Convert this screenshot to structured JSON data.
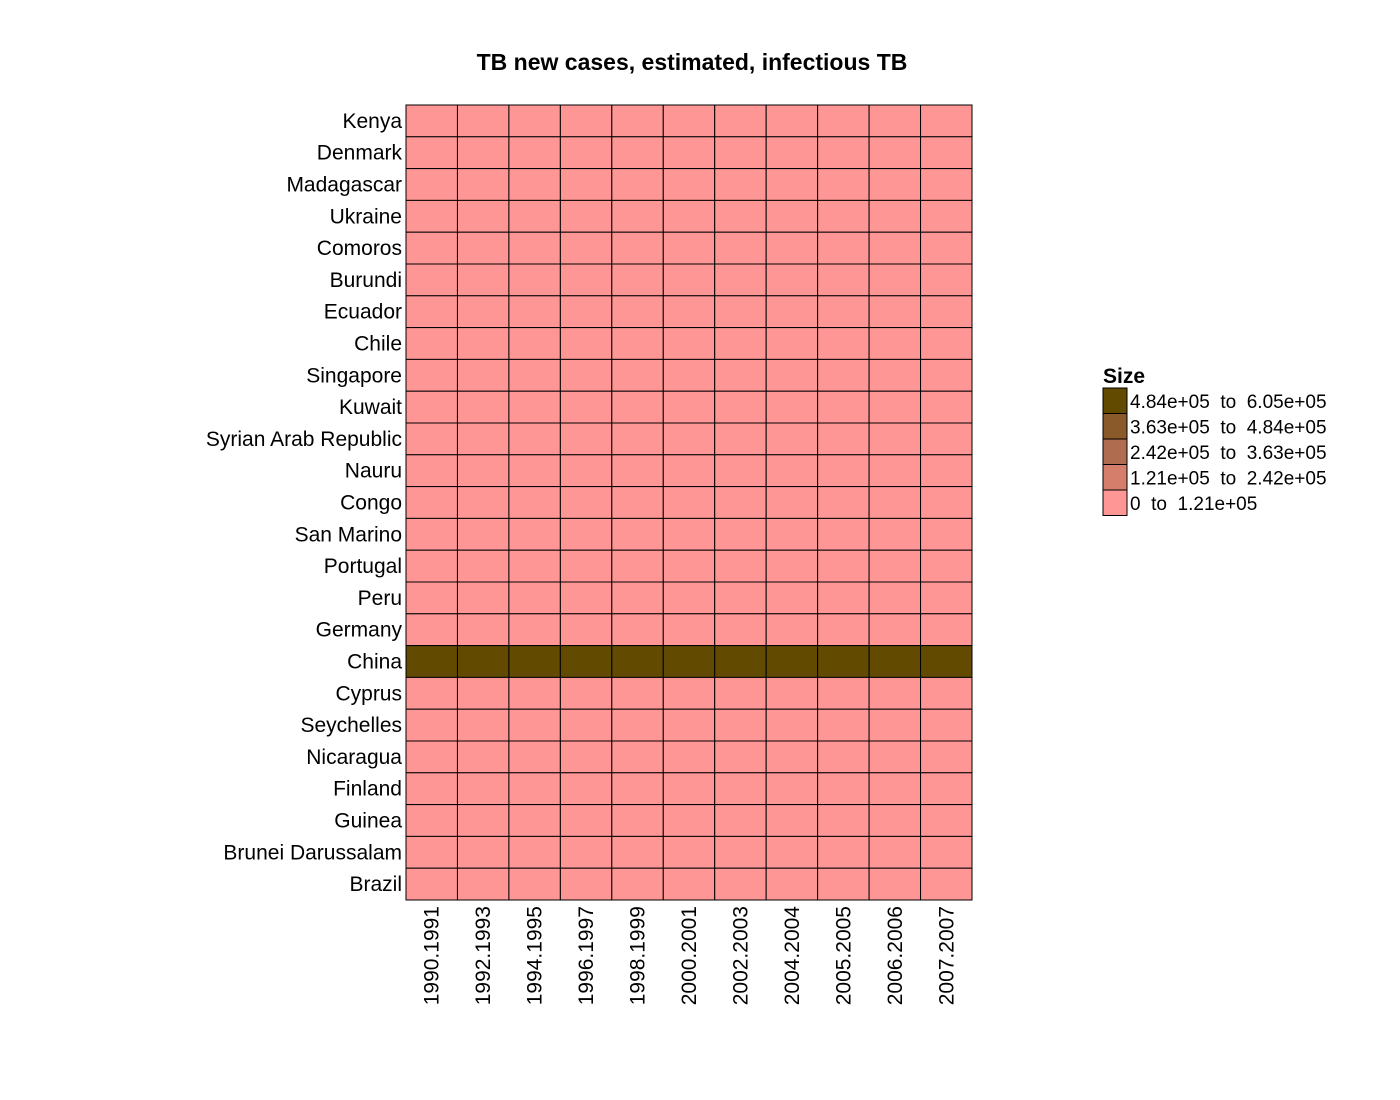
{
  "chart_data": {
    "type": "heatmap",
    "title": "TB new cases, estimated, infectious TB",
    "rows": [
      "Kenya",
      "Denmark",
      "Madagascar",
      "Ukraine",
      "Comoros",
      "Burundi",
      "Ecuador",
      "Chile",
      "Singapore",
      "Kuwait",
      "Syrian Arab Republic",
      "Nauru",
      "Congo",
      "San Marino",
      "Portugal",
      "Peru",
      "Germany",
      "China",
      "Cyprus",
      "Seychelles",
      "Nicaragua",
      "Finland",
      "Guinea",
      "Brunei Darussalam",
      "Brazil"
    ],
    "columns": [
      "1990.1991",
      "1992.1993",
      "1994.1995",
      "1996.1997",
      "1998.1999",
      "2000.2001",
      "2002.2003",
      "2004.2004",
      "2005.2005",
      "2006.2006",
      "2007.2007"
    ],
    "values": [
      [
        0,
        0,
        0,
        0,
        0,
        0,
        0,
        0,
        0,
        0,
        0
      ],
      [
        0,
        0,
        0,
        0,
        0,
        0,
        0,
        0,
        0,
        0,
        0
      ],
      [
        0,
        0,
        0,
        0,
        0,
        0,
        0,
        0,
        0,
        0,
        0
      ],
      [
        0,
        0,
        0,
        0,
        0,
        0,
        0,
        0,
        0,
        0,
        0
      ],
      [
        0,
        0,
        0,
        0,
        0,
        0,
        0,
        0,
        0,
        0,
        0
      ],
      [
        0,
        0,
        0,
        0,
        0,
        0,
        0,
        0,
        0,
        0,
        0
      ],
      [
        0,
        0,
        0,
        0,
        0,
        0,
        0,
        0,
        0,
        0,
        0
      ],
      [
        0,
        0,
        0,
        0,
        0,
        0,
        0,
        0,
        0,
        0,
        0
      ],
      [
        0,
        0,
        0,
        0,
        0,
        0,
        0,
        0,
        0,
        0,
        0
      ],
      [
        0,
        0,
        0,
        0,
        0,
        0,
        0,
        0,
        0,
        0,
        0
      ],
      [
        0,
        0,
        0,
        0,
        0,
        0,
        0,
        0,
        0,
        0,
        0
      ],
      [
        0,
        0,
        0,
        0,
        0,
        0,
        0,
        0,
        0,
        0,
        0
      ],
      [
        0,
        0,
        0,
        0,
        0,
        0,
        0,
        0,
        0,
        0,
        0
      ],
      [
        0,
        0,
        0,
        0,
        0,
        0,
        0,
        0,
        0,
        0,
        0
      ],
      [
        0,
        0,
        0,
        0,
        0,
        0,
        0,
        0,
        0,
        0,
        0
      ],
      [
        0,
        0,
        0,
        0,
        0,
        0,
        0,
        0,
        0,
        0,
        0
      ],
      [
        0,
        0,
        0,
        0,
        0,
        0,
        0,
        0,
        0,
        0,
        0
      ],
      [
        4,
        4,
        4,
        4,
        4,
        4,
        4,
        4,
        4,
        4,
        4
      ],
      [
        0,
        0,
        0,
        0,
        0,
        0,
        0,
        0,
        0,
        0,
        0
      ],
      [
        0,
        0,
        0,
        0,
        0,
        0,
        0,
        0,
        0,
        0,
        0
      ],
      [
        0,
        0,
        0,
        0,
        0,
        0,
        0,
        0,
        0,
        0,
        0
      ],
      [
        0,
        0,
        0,
        0,
        0,
        0,
        0,
        0,
        0,
        0,
        0
      ],
      [
        0,
        0,
        0,
        0,
        0,
        0,
        0,
        0,
        0,
        0,
        0
      ],
      [
        0,
        0,
        0,
        0,
        0,
        0,
        0,
        0,
        0,
        0,
        0
      ],
      [
        0,
        0,
        0,
        0,
        0,
        0,
        0,
        0,
        0,
        0,
        0
      ]
    ],
    "legend": {
      "title": "Size",
      "position": "right",
      "bins": [
        {
          "from": "4.84e+05",
          "to": "6.05e+05",
          "color": "#624a00"
        },
        {
          "from": "3.63e+05",
          "to": "4.84e+05",
          "color": "#8b5a2b"
        },
        {
          "from": "2.42e+05",
          "to": "3.63e+05",
          "color": "#b06c4f"
        },
        {
          "from": "1.21e+05",
          "to": "2.42e+05",
          "color": "#d47e6b"
        },
        {
          "from": "0",
          "to": "1.21e+05",
          "color": "#ff9696"
        }
      ],
      "connector": "to"
    },
    "grid": true
  }
}
